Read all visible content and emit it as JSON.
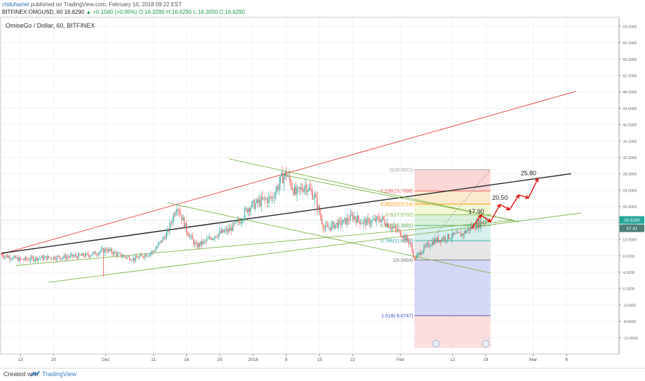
{
  "header": {
    "username": "chduhamel",
    "published_text": "published on TradingView.com, February 16, 2018 09:22 EST",
    "symbol_line": "BITFINEX:OMGUSD, 60",
    "last": "16.6290",
    "change": "+0.1560 (+0.95%)",
    "open": "O:16.3280",
    "high": "H:16.6290",
    "low": "L:16.3050",
    "close": "C:16.6290"
  },
  "chart_title": "OmiseGo / Dollar, 60, BITFINEX",
  "footer": {
    "created_with": "Created with",
    "brand": "TradingView"
  },
  "colors": {
    "bull": "#26a69a",
    "bear": "#ef5350",
    "trend_black": "#222222",
    "trend_red": "#e53935",
    "trend_green": "#7cb342",
    "arrow": "#e00000",
    "price_badge": "#26a69a",
    "volume_badge": "#4a7f77"
  },
  "chart_data": {
    "type": "candlestick",
    "timeframe": "60",
    "ylim": [
      -16,
      66
    ],
    "y_ticks": [
      -12,
      -8,
      -4,
      0,
      4,
      8,
      12,
      16,
      20,
      24,
      28,
      32,
      36,
      40,
      44,
      48,
      52,
      56,
      60,
      64
    ],
    "y_tick_labels": [
      "-12.0000",
      "-8.0000",
      "-4.0000",
      "0.0000",
      "4.0000",
      "8.0000",
      "12.0000",
      "16.0000",
      "20.0000",
      "24.0000",
      "28.0000",
      "32.0000",
      "36.0000",
      "40.0000",
      "44.0000",
      "48.0000",
      "52.0000",
      "56.0000",
      "60.0000",
      "64.0000"
    ],
    "x_ticks": [
      {
        "label": "13",
        "day": 13
      },
      {
        "label": "20",
        "day": 20
      },
      {
        "label": "Dec",
        "day": 31
      },
      {
        "label": "11",
        "day": 41
      },
      {
        "label": "18",
        "day": 48
      },
      {
        "label": "25",
        "day": 55
      },
      {
        "label": "2018",
        "day": 62
      },
      {
        "label": "8",
        "day": 69
      },
      {
        "label": "15",
        "day": 76
      },
      {
        "label": "22",
        "day": 83
      },
      {
        "label": "Feb",
        "day": 93
      },
      {
        "label": "12",
        "day": 104
      },
      {
        "label": "19",
        "day": 111
      },
      {
        "label": "Mar",
        "day": 121
      },
      {
        "label": "8",
        "day": 128
      }
    ],
    "xlim": [
      9,
      139
    ],
    "price_path": [
      {
        "d": 9,
        "p": 8.2
      },
      {
        "d": 13,
        "p": 7.0
      },
      {
        "d": 17,
        "p": 7.4
      },
      {
        "d": 21,
        "p": 7.6
      },
      {
        "d": 25,
        "p": 7.9
      },
      {
        "d": 28,
        "p": 8.3
      },
      {
        "d": 31,
        "p": 9.5
      },
      {
        "d": 34,
        "p": 8.1
      },
      {
        "d": 37,
        "p": 7.2
      },
      {
        "d": 41,
        "p": 9.0
      },
      {
        "d": 44,
        "p": 13.6
      },
      {
        "d": 46,
        "p": 20.5
      },
      {
        "d": 48,
        "p": 14.2
      },
      {
        "d": 50,
        "p": 10.3
      },
      {
        "d": 52,
        "p": 11.5
      },
      {
        "d": 54,
        "p": 13.0
      },
      {
        "d": 57,
        "p": 14.3
      },
      {
        "d": 59,
        "p": 16.2
      },
      {
        "d": 61,
        "p": 19.8
      },
      {
        "d": 64,
        "p": 21.4
      },
      {
        "d": 66,
        "p": 22.1
      },
      {
        "d": 68,
        "p": 26.8
      },
      {
        "d": 69,
        "p": 28.0
      },
      {
        "d": 71,
        "p": 23.0
      },
      {
        "d": 73,
        "p": 25.3
      },
      {
        "d": 75,
        "p": 22.3
      },
      {
        "d": 77,
        "p": 14.5
      },
      {
        "d": 79,
        "p": 15.5
      },
      {
        "d": 81,
        "p": 16.1
      },
      {
        "d": 83,
        "p": 17.6
      },
      {
        "d": 85,
        "p": 16.2
      },
      {
        "d": 87,
        "p": 16.3
      },
      {
        "d": 89,
        "p": 17.1
      },
      {
        "d": 91,
        "p": 15.1
      },
      {
        "d": 93,
        "p": 13.6
      },
      {
        "d": 95,
        "p": 11.2
      },
      {
        "d": 96,
        "p": 7.2
      },
      {
        "d": 98,
        "p": 9.8
      },
      {
        "d": 100,
        "p": 11.5
      },
      {
        "d": 102,
        "p": 12.3
      },
      {
        "d": 104,
        "p": 12.8
      },
      {
        "d": 106,
        "p": 13.2
      },
      {
        "d": 108,
        "p": 15.0
      },
      {
        "d": 110,
        "p": 16.0
      },
      {
        "d": 111,
        "p": 16.63
      }
    ],
    "trendlines": [
      {
        "name": "red-upper",
        "color": "red",
        "from": [
          9,
          8.4
        ],
        "to": [
          130,
          48.1
        ]
      },
      {
        "name": "black-mid",
        "color": "black",
        "from": [
          9,
          8.6
        ],
        "to": [
          129,
          28.0
        ]
      },
      {
        "name": "green-lower",
        "color": "green",
        "from": [
          19,
          1.5
        ],
        "to": [
          131,
          18.4
        ]
      },
      {
        "name": "green-mid",
        "color": "green",
        "from": [
          12,
          5.6
        ],
        "to": [
          117,
          16.6
        ]
      },
      {
        "name": "green-desc-top",
        "color": "green",
        "from": [
          57,
          31.6
        ],
        "to": [
          118,
          16.2
        ]
      },
      {
        "name": "green-desc-bottom",
        "color": "green",
        "from": [
          44,
          20.9
        ],
        "to": [
          112,
          3.8
        ]
      },
      {
        "name": "green-desc-mid",
        "color": "green",
        "from": [
          68,
          27.8
        ],
        "to": [
          117,
          16.6
        ]
      }
    ],
    "fibonacci": {
      "x_from": 96,
      "x_to": 112,
      "levels": [
        {
          "ratio": "0",
          "value": 28.9921,
          "label": "0(28.9921)"
        },
        {
          "ratio": "0.236",
          "value": 23.7898,
          "label": "0.236(23.7898)"
        },
        {
          "ratio": "0.382",
          "value": 20.5714,
          "label": "0.382(20.5714)"
        },
        {
          "ratio": "0.5",
          "value": 17.9702,
          "label": "0.5(17.9702)"
        },
        {
          "ratio": "0.618",
          "value": 15.3691,
          "label": "0.618(15.3691)"
        },
        {
          "ratio": "0.786",
          "value": 11.6655,
          "label": "0.786(11.6655)"
        },
        {
          "ratio": "1",
          "value": 6.9484,
          "label": "1(6.9484)"
        },
        {
          "ratio": "1.618",
          "value": -6.6747,
          "label": "1.618(-6.6747)"
        }
      ]
    },
    "projection": [
      {
        "d": 108,
        "p": 14.6
      },
      {
        "d": 110,
        "p": 17.9
      },
      {
        "d": 112,
        "p": 16.3
      },
      {
        "d": 114,
        "p": 20.5
      },
      {
        "d": 116,
        "p": 19.2
      },
      {
        "d": 118,
        "p": 22.8
      },
      {
        "d": 120,
        "p": 22.1
      },
      {
        "d": 122,
        "p": 26.8
      }
    ],
    "targets": [
      {
        "label": "17.90",
        "d": 109,
        "p": 17.9
      },
      {
        "label": "20.50",
        "d": 114,
        "p": 21.3
      },
      {
        "label": "25.80",
        "d": 120,
        "p": 27.3
      }
    ],
    "current_price_label": "16.6290",
    "volume_label": "37.41"
  }
}
